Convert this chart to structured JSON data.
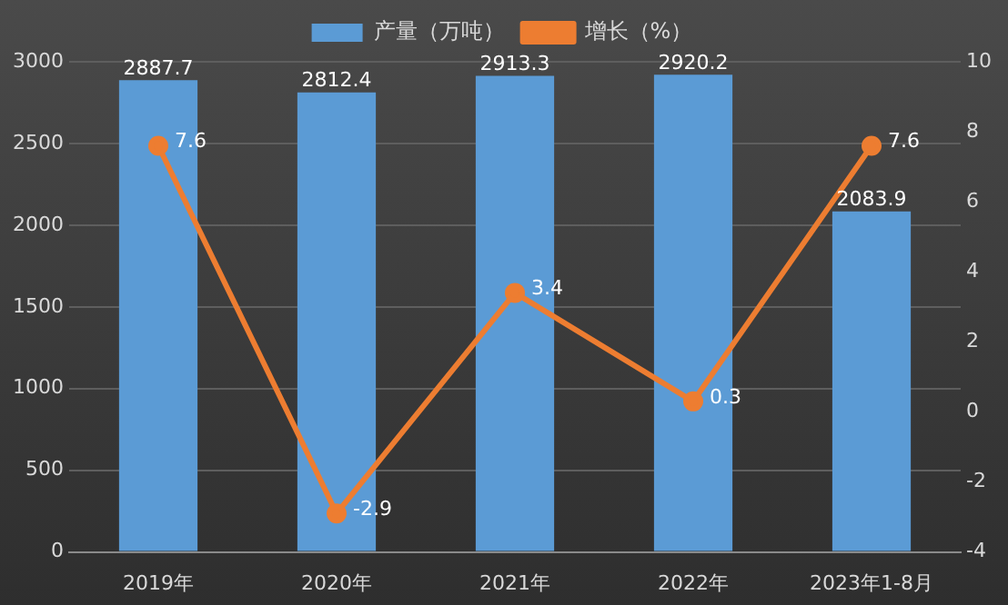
{
  "chart_data": {
    "type": "bar",
    "categories": [
      "2019年",
      "2020年",
      "2021年",
      "2022年",
      "2023年1-8月"
    ],
    "series": [
      {
        "name": "产量（万吨）",
        "color": "#5b9bd5",
        "values": [
          2887.7,
          2812.4,
          2913.3,
          2920.2,
          2083.9
        ]
      },
      {
        "name": "增长（%）",
        "type": "line",
        "axis": "y2",
        "color": "#ed7d31",
        "marker": "circle",
        "values": [
          7.6,
          -2.9,
          3.4,
          0.3,
          7.6
        ]
      }
    ],
    "ylim": [
      0,
      3000
    ],
    "yticks": [
      0,
      500,
      1000,
      1500,
      2000,
      2500,
      3000
    ],
    "y2lim": [
      -4,
      10
    ],
    "y2ticks": [
      -4,
      -2,
      0,
      2,
      4,
      6,
      8,
      10
    ],
    "grid": "y",
    "legend": "top",
    "data_labels": true
  }
}
